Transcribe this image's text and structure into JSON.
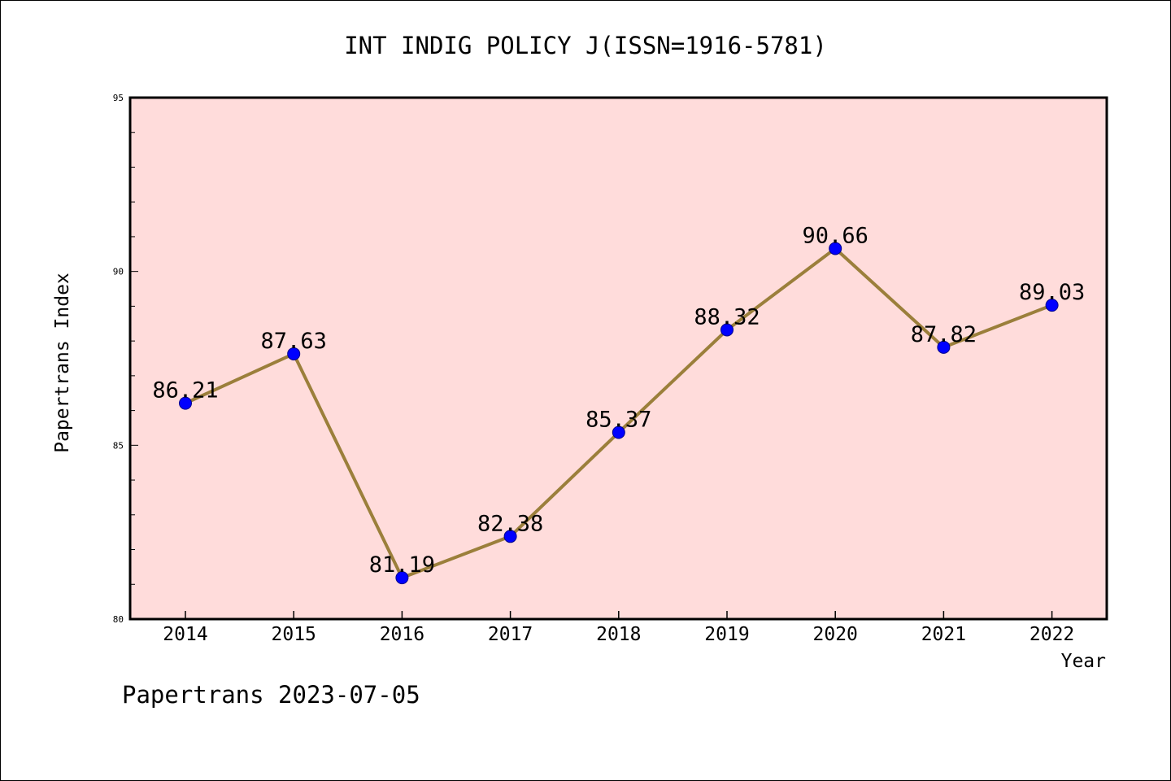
{
  "chart_data": {
    "type": "line",
    "title": "INT INDIG POLICY J(ISSN=1916-5781)",
    "xlabel": "Year",
    "ylabel": "Papertrans Index",
    "categories": [
      "2014",
      "2015",
      "2016",
      "2017",
      "2018",
      "2019",
      "2020",
      "2021",
      "2022"
    ],
    "series": [
      {
        "values": [
          86.21,
          87.63,
          81.19,
          82.38,
          85.37,
          88.32,
          90.66,
          87.82,
          89.03
        ]
      }
    ],
    "data_labels": [
      "86.21",
      "87.63",
      "81.19",
      "82.38",
      "85.37",
      "88.32",
      "90.66",
      "87.82",
      "89.03"
    ],
    "ylim": [
      80,
      95
    ],
    "y_ticks": [
      "80",
      "85",
      "90",
      "95"
    ],
    "grid": false,
    "legend": "none",
    "colors": {
      "line": "#9b7f3b",
      "marker": "#0000ff",
      "plot_bg": "#ffdcdb"
    }
  },
  "footer": {
    "text": "Papertrans 2023-07-05"
  }
}
